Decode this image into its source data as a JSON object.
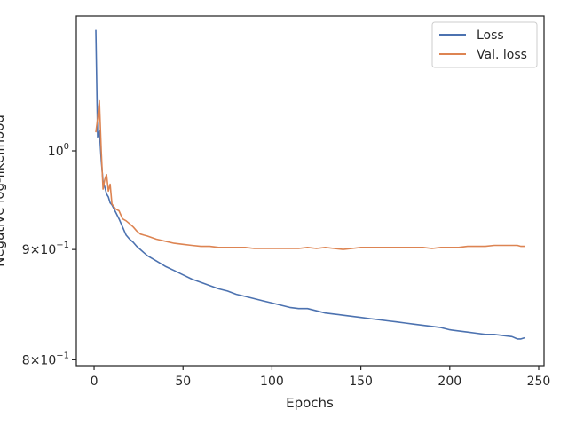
{
  "chart_data": {
    "type": "line",
    "xlabel": "Epochs",
    "ylabel": "Negative log-likelihood",
    "xlim": [
      -10,
      253
    ],
    "ylim": [
      0.795,
      1.155
    ],
    "yscale": "log",
    "x_ticks": [
      0,
      50,
      100,
      150,
      200,
      250
    ],
    "y_ticks": [
      {
        "value": 1.0,
        "base": "10",
        "exp": "0"
      },
      {
        "value": 0.9,
        "mant": "9",
        "base": "10",
        "exp": "−1"
      },
      {
        "value": 0.8,
        "mant": "8",
        "base": "10",
        "exp": "−1"
      }
    ],
    "grid": false,
    "legend_position": "top-right",
    "x": [
      1,
      2,
      3,
      4,
      5,
      6,
      7,
      8,
      9,
      10,
      12,
      14,
      16,
      18,
      20,
      22,
      24,
      26,
      28,
      30,
      35,
      40,
      45,
      50,
      55,
      60,
      65,
      70,
      75,
      80,
      85,
      90,
      95,
      100,
      105,
      110,
      115,
      120,
      125,
      130,
      135,
      140,
      145,
      150,
      155,
      160,
      165,
      170,
      175,
      180,
      185,
      190,
      195,
      200,
      205,
      210,
      215,
      220,
      225,
      230,
      235,
      238,
      240,
      242
    ],
    "series": [
      {
        "name": "Loss",
        "color": "#4c72b0",
        "values": [
          1.138,
          1.015,
          1.022,
          0.99,
          0.968,
          0.962,
          0.955,
          0.952,
          0.946,
          0.944,
          0.937,
          0.93,
          0.922,
          0.914,
          0.91,
          0.907,
          0.903,
          0.9,
          0.897,
          0.894,
          0.889,
          0.884,
          0.88,
          0.876,
          0.872,
          0.869,
          0.866,
          0.863,
          0.861,
          0.858,
          0.856,
          0.854,
          0.852,
          0.85,
          0.848,
          0.846,
          0.845,
          0.845,
          0.843,
          0.841,
          0.84,
          0.839,
          0.838,
          0.837,
          0.836,
          0.835,
          0.834,
          0.833,
          0.832,
          0.831,
          0.83,
          0.829,
          0.828,
          0.826,
          0.825,
          0.824,
          0.823,
          0.822,
          0.822,
          0.821,
          0.82,
          0.818,
          0.818,
          0.819
        ]
      },
      {
        "name": "Val. loss",
        "color": "#dd8452",
        "values": [
          1.02,
          1.035,
          1.055,
          1.0,
          0.96,
          0.97,
          0.975,
          0.958,
          0.965,
          0.945,
          0.94,
          0.938,
          0.93,
          0.928,
          0.925,
          0.922,
          0.918,
          0.915,
          0.914,
          0.913,
          0.91,
          0.908,
          0.906,
          0.905,
          0.904,
          0.903,
          0.903,
          0.902,
          0.902,
          0.902,
          0.902,
          0.901,
          0.901,
          0.901,
          0.901,
          0.901,
          0.901,
          0.902,
          0.901,
          0.902,
          0.901,
          0.9,
          0.901,
          0.902,
          0.902,
          0.902,
          0.902,
          0.902,
          0.902,
          0.902,
          0.902,
          0.901,
          0.902,
          0.902,
          0.902,
          0.903,
          0.903,
          0.903,
          0.904,
          0.904,
          0.904,
          0.904,
          0.903,
          0.903
        ]
      }
    ]
  }
}
